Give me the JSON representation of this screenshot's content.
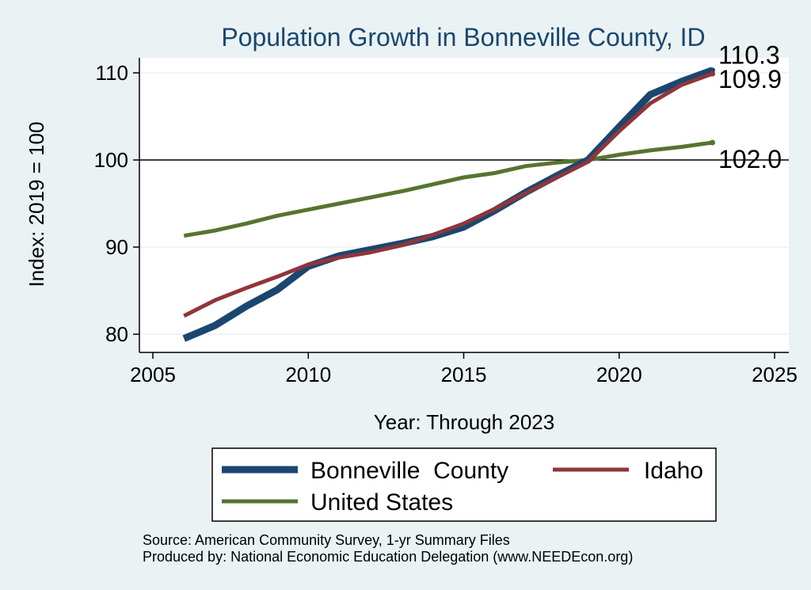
{
  "chart_data": {
    "type": "line",
    "title": "Population Growth in Bonneville County, ID",
    "xlabel": "Year: Through 2023",
    "ylabel": "Index: 2019 = 100",
    "xlim": [
      2005,
      2025
    ],
    "ylim": [
      78,
      112
    ],
    "xticks": [
      2005,
      2010,
      2015,
      2020,
      2025
    ],
    "yticks": [
      80,
      90,
      100,
      110
    ],
    "reference_line": 100,
    "x": [
      2006,
      2007,
      2008,
      2009,
      2010,
      2011,
      2012,
      2013,
      2014,
      2015,
      2016,
      2017,
      2018,
      2019,
      2020,
      2021,
      2022,
      2023
    ],
    "series": [
      {
        "name": "Bonneville  County",
        "color": "#1a476f",
        "values": [
          79.5,
          81.0,
          83.2,
          85.1,
          87.8,
          89.0,
          89.7,
          90.4,
          91.2,
          92.3,
          94.2,
          96.3,
          98.2,
          100.0,
          103.8,
          107.5,
          109.0,
          110.3
        ],
        "end_label": "110.3"
      },
      {
        "name": "Idaho",
        "color": "#90353b",
        "values": [
          82.1,
          83.9,
          85.3,
          86.6,
          88.0,
          88.8,
          89.4,
          90.2,
          91.4,
          92.7,
          94.4,
          96.2,
          98.0,
          99.8,
          103.3,
          106.5,
          108.6,
          109.9
        ],
        "end_label": "109.9"
      },
      {
        "name": "United States",
        "color": "#55752f",
        "values": [
          91.3,
          91.9,
          92.7,
          93.6,
          94.3,
          95.0,
          95.7,
          96.4,
          97.2,
          98.0,
          98.5,
          99.3,
          99.7,
          100.0,
          100.6,
          101.1,
          101.5,
          102.0
        ],
        "end_label": "102.0"
      }
    ],
    "legend": [
      {
        "label": "Bonneville  County",
        "color": "#1a476f"
      },
      {
        "label": "Idaho",
        "color": "#90353b"
      },
      {
        "label": "United States",
        "color": "#55752f"
      }
    ],
    "source_lines": [
      "Source: American Community Survey, 1-yr Summary Files",
      "Produced by: National Economic Education Delegation (www.NEEDEcon.org)"
    ],
    "colors": {
      "background": "#eaf2f3",
      "plot_background": "#ffffff",
      "title": "#1a476f",
      "grid": "#eaf2f3"
    }
  }
}
